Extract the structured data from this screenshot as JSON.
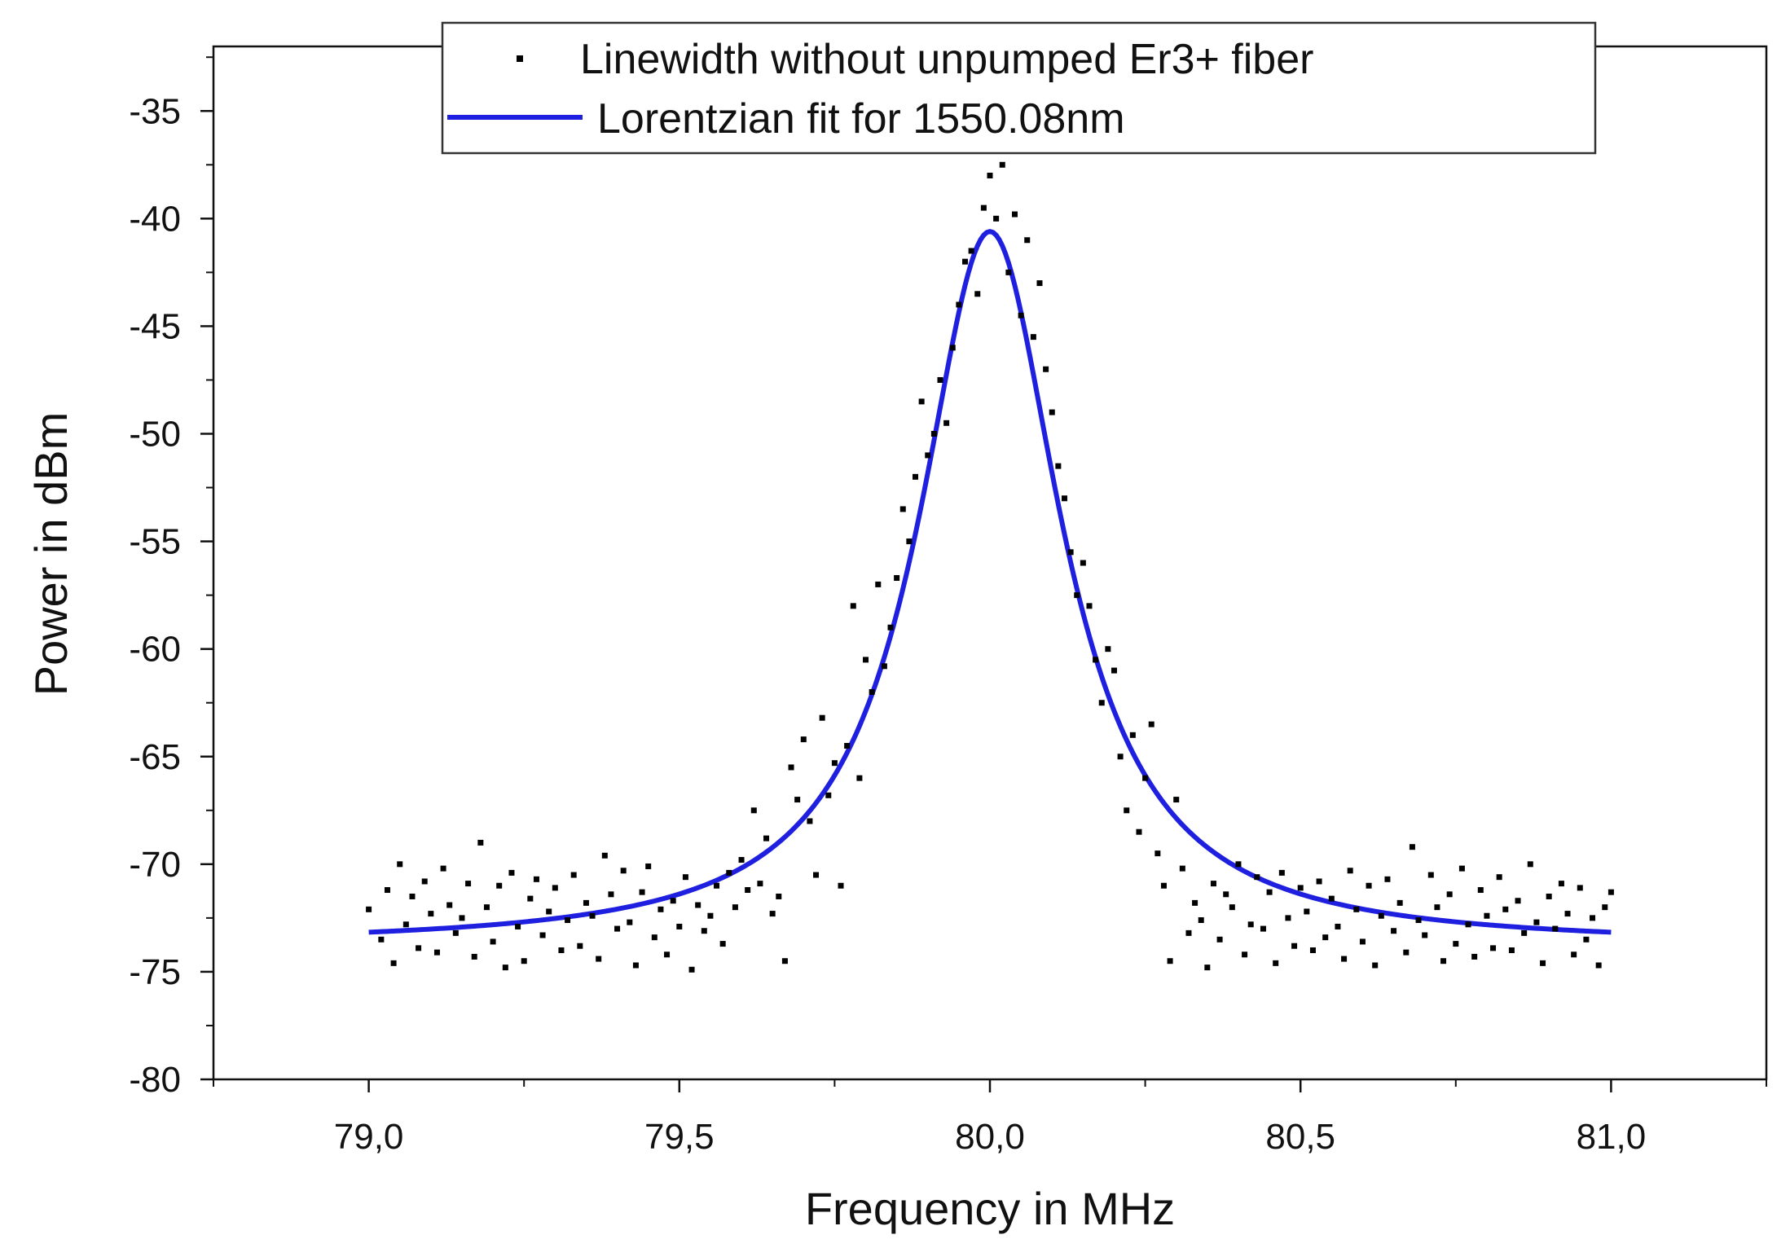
{
  "chart_data": {
    "type": "scatter",
    "title": "",
    "xlabel": "Frequency in MHz",
    "ylabel": "Power in dBm",
    "xlim": [
      78.75,
      81.25
    ],
    "ylim": [
      -80,
      -32
    ],
    "x_ticks": [
      79.0,
      79.5,
      80.0,
      80.5,
      81.0
    ],
    "x_tick_labels": [
      "79,0",
      "79,5",
      "80,0",
      "80,5",
      "81,0"
    ],
    "y_ticks": [
      -80,
      -75,
      -70,
      -65,
      -60,
      -55,
      -50,
      -45,
      -40,
      -35
    ],
    "y_tick_labels": [
      "-80",
      "-75",
      "-70",
      "-65",
      "-60",
      "-55",
      "-50",
      "-45",
      "-40",
      "-35"
    ],
    "legend_position": "top",
    "series": [
      {
        "name": "Linewidth without unpumped Er3+ fiber",
        "kind": "scatter",
        "color": "#000000",
        "points": [
          [
            79.0,
            -72.1
          ],
          [
            79.02,
            -73.5
          ],
          [
            79.03,
            -71.2
          ],
          [
            79.04,
            -74.6
          ],
          [
            79.05,
            -70.0
          ],
          [
            79.06,
            -72.8
          ],
          [
            79.07,
            -71.5
          ],
          [
            79.08,
            -73.9
          ],
          [
            79.09,
            -70.8
          ],
          [
            79.1,
            -72.3
          ],
          [
            79.11,
            -74.1
          ],
          [
            79.12,
            -70.2
          ],
          [
            79.13,
            -71.9
          ],
          [
            79.14,
            -73.2
          ],
          [
            79.15,
            -72.5
          ],
          [
            79.16,
            -70.9
          ],
          [
            79.17,
            -74.3
          ],
          [
            79.18,
            -69.0
          ],
          [
            79.19,
            -72.0
          ],
          [
            79.2,
            -73.6
          ],
          [
            79.21,
            -71.0
          ],
          [
            79.22,
            -74.8
          ],
          [
            79.23,
            -70.4
          ],
          [
            79.24,
            -72.9
          ],
          [
            79.25,
            -74.5
          ],
          [
            79.26,
            -71.6
          ],
          [
            79.27,
            -70.7
          ],
          [
            79.28,
            -73.3
          ],
          [
            79.29,
            -72.2
          ],
          [
            79.3,
            -71.1
          ],
          [
            79.31,
            -74.0
          ],
          [
            79.32,
            -72.6
          ],
          [
            79.33,
            -70.5
          ],
          [
            79.34,
            -73.8
          ],
          [
            79.35,
            -71.8
          ],
          [
            79.36,
            -72.4
          ],
          [
            79.37,
            -74.4
          ],
          [
            79.38,
            -69.6
          ],
          [
            79.39,
            -71.4
          ],
          [
            79.4,
            -73.0
          ],
          [
            79.41,
            -70.3
          ],
          [
            79.42,
            -72.7
          ],
          [
            79.43,
            -74.7
          ],
          [
            79.44,
            -71.3
          ],
          [
            79.45,
            -70.1
          ],
          [
            79.46,
            -73.4
          ],
          [
            79.47,
            -72.1
          ],
          [
            79.48,
            -74.2
          ],
          [
            79.49,
            -71.7
          ],
          [
            79.5,
            -72.9
          ],
          [
            79.51,
            -70.6
          ],
          [
            79.52,
            -74.9
          ],
          [
            79.53,
            -71.9
          ],
          [
            79.54,
            -73.1
          ],
          [
            79.55,
            -72.4
          ],
          [
            79.56,
            -71.0
          ],
          [
            79.57,
            -73.7
          ],
          [
            79.58,
            -70.4
          ],
          [
            79.59,
            -72.0
          ],
          [
            79.6,
            -69.8
          ],
          [
            79.61,
            -71.2
          ],
          [
            79.62,
            -67.5
          ],
          [
            79.63,
            -70.9
          ],
          [
            79.64,
            -68.8
          ],
          [
            79.65,
            -72.3
          ],
          [
            79.66,
            -71.5
          ],
          [
            79.67,
            -74.5
          ],
          [
            79.68,
            -65.5
          ],
          [
            79.69,
            -67.0
          ],
          [
            79.7,
            -64.2
          ],
          [
            79.71,
            -68.0
          ],
          [
            79.72,
            -70.5
          ],
          [
            79.73,
            -63.2
          ],
          [
            79.74,
            -66.8
          ],
          [
            79.75,
            -65.3
          ],
          [
            79.76,
            -71.0
          ],
          [
            79.77,
            -64.5
          ],
          [
            79.78,
            -58.0
          ],
          [
            79.79,
            -66.0
          ],
          [
            79.8,
            -60.5
          ],
          [
            79.81,
            -62.0
          ],
          [
            79.82,
            -57.0
          ],
          [
            79.83,
            -60.8
          ],
          [
            79.84,
            -59.0
          ],
          [
            79.85,
            -56.7
          ],
          [
            79.86,
            -53.5
          ],
          [
            79.87,
            -55.0
          ],
          [
            79.88,
            -52.0
          ],
          [
            79.89,
            -48.5
          ],
          [
            79.9,
            -51.0
          ],
          [
            79.91,
            -50.0
          ],
          [
            79.92,
            -47.5
          ],
          [
            79.93,
            -49.5
          ],
          [
            79.94,
            -46.0
          ],
          [
            79.95,
            -44.0
          ],
          [
            79.96,
            -42.0
          ],
          [
            79.97,
            -41.5
          ],
          [
            79.98,
            -43.5
          ],
          [
            79.99,
            -39.5
          ],
          [
            80.0,
            -38.0
          ],
          [
            80.01,
            -40.0
          ],
          [
            80.02,
            -37.5
          ],
          [
            80.03,
            -42.5
          ],
          [
            80.04,
            -39.8
          ],
          [
            80.05,
            -44.5
          ],
          [
            80.06,
            -41.0
          ],
          [
            80.07,
            -45.5
          ],
          [
            80.08,
            -43.0
          ],
          [
            80.09,
            -47.0
          ],
          [
            80.1,
            -49.0
          ],
          [
            80.11,
            -51.5
          ],
          [
            80.12,
            -53.0
          ],
          [
            80.13,
            -55.5
          ],
          [
            80.14,
            -57.5
          ],
          [
            80.15,
            -56.0
          ],
          [
            80.16,
            -58.0
          ],
          [
            80.17,
            -60.5
          ],
          [
            80.18,
            -62.5
          ],
          [
            80.19,
            -60.0
          ],
          [
            80.2,
            -61.0
          ],
          [
            80.21,
            -65.0
          ],
          [
            80.22,
            -67.5
          ],
          [
            80.23,
            -64.0
          ],
          [
            80.24,
            -68.5
          ],
          [
            80.25,
            -66.0
          ],
          [
            80.26,
            -63.5
          ],
          [
            80.27,
            -69.5
          ],
          [
            80.28,
            -71.0
          ],
          [
            80.29,
            -74.5
          ],
          [
            80.3,
            -67.0
          ],
          [
            80.31,
            -70.2
          ],
          [
            80.32,
            -73.2
          ],
          [
            80.33,
            -71.8
          ],
          [
            80.34,
            -72.6
          ],
          [
            80.35,
            -74.8
          ],
          [
            80.36,
            -70.9
          ],
          [
            80.37,
            -73.5
          ],
          [
            80.38,
            -71.4
          ],
          [
            80.39,
            -72.0
          ],
          [
            80.4,
            -70.0
          ],
          [
            80.41,
            -74.2
          ],
          [
            80.42,
            -72.8
          ],
          [
            80.43,
            -70.6
          ],
          [
            80.44,
            -73.0
          ],
          [
            80.45,
            -71.3
          ],
          [
            80.46,
            -74.6
          ],
          [
            80.47,
            -70.4
          ],
          [
            80.48,
            -72.5
          ],
          [
            80.49,
            -73.8
          ],
          [
            80.5,
            -71.1
          ],
          [
            80.51,
            -72.2
          ],
          [
            80.52,
            -74.0
          ],
          [
            80.53,
            -70.8
          ],
          [
            80.54,
            -73.4
          ],
          [
            80.55,
            -71.6
          ],
          [
            80.56,
            -72.9
          ],
          [
            80.57,
            -74.4
          ],
          [
            80.58,
            -70.3
          ],
          [
            80.59,
            -72.1
          ],
          [
            80.6,
            -73.6
          ],
          [
            80.61,
            -71.0
          ],
          [
            80.62,
            -74.7
          ],
          [
            80.63,
            -72.4
          ],
          [
            80.64,
            -70.7
          ],
          [
            80.65,
            -73.1
          ],
          [
            80.66,
            -71.8
          ],
          [
            80.67,
            -74.1
          ],
          [
            80.68,
            -69.2
          ],
          [
            80.69,
            -72.6
          ],
          [
            80.7,
            -73.3
          ],
          [
            80.71,
            -70.5
          ],
          [
            80.72,
            -72.0
          ],
          [
            80.73,
            -74.5
          ],
          [
            80.74,
            -71.4
          ],
          [
            80.75,
            -73.7
          ],
          [
            80.76,
            -70.2
          ],
          [
            80.77,
            -72.8
          ],
          [
            80.78,
            -74.3
          ],
          [
            80.79,
            -71.2
          ],
          [
            80.8,
            -72.4
          ],
          [
            80.81,
            -73.9
          ],
          [
            80.82,
            -70.6
          ],
          [
            80.83,
            -72.1
          ],
          [
            80.84,
            -74.0
          ],
          [
            80.85,
            -71.7
          ],
          [
            80.86,
            -73.2
          ],
          [
            80.87,
            -70.0
          ],
          [
            80.88,
            -72.7
          ],
          [
            80.89,
            -74.6
          ],
          [
            80.9,
            -71.5
          ],
          [
            80.91,
            -73.0
          ],
          [
            80.92,
            -70.9
          ],
          [
            80.93,
            -72.3
          ],
          [
            80.94,
            -74.2
          ],
          [
            80.95,
            -71.1
          ],
          [
            80.96,
            -73.5
          ],
          [
            80.97,
            -72.5
          ],
          [
            80.98,
            -74.7
          ],
          [
            80.99,
            -72.0
          ],
          [
            81.0,
            -71.3
          ]
        ]
      },
      {
        "name": "Lorentzian fit for 1550.08nm",
        "kind": "line",
        "color": "#1f1fe0",
        "model": "lorentzian",
        "x_range": [
          79.0,
          81.0
        ],
        "center": 80.0,
        "baseline": -73.8,
        "peak": -40.6,
        "fwhm": 0.28
      }
    ]
  }
}
